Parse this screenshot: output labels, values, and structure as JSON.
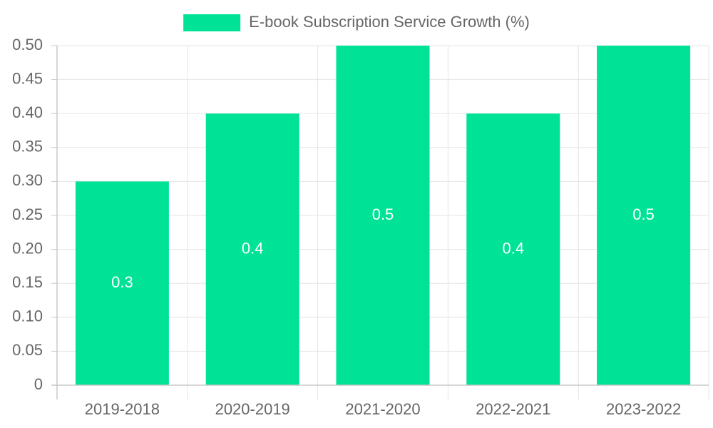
{
  "chart_data": {
    "type": "bar",
    "categories": [
      "2019-2018",
      "2020-2019",
      "2021-2020",
      "2022-2021",
      "2023-2022"
    ],
    "series": [
      {
        "name": "E-book Subscription Service Growth (%)",
        "values": [
          0.3,
          0.4,
          0.5,
          0.4,
          0.5
        ],
        "color": "#00e396"
      }
    ],
    "title": "",
    "xlabel": "",
    "ylabel": "",
    "ylim": [
      0,
      0.5
    ],
    "yticks": [
      "0",
      "0.05",
      "0.10",
      "0.15",
      "0.20",
      "0.25",
      "0.30",
      "0.35",
      "0.40",
      "0.45",
      "0.50"
    ],
    "data_labels": [
      "0.3",
      "0.4",
      "0.5",
      "0.4",
      "0.5"
    ],
    "grid": true,
    "legend": "top-center"
  }
}
